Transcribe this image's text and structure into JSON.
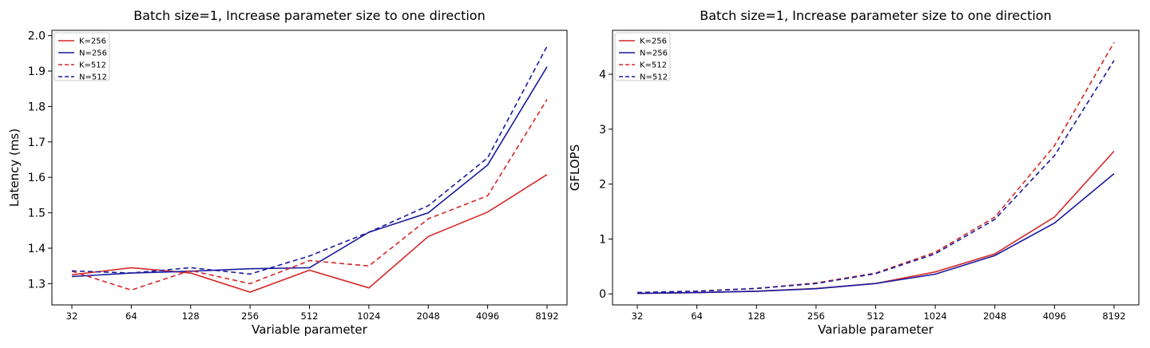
{
  "chart_data": [
    {
      "type": "line",
      "title": "Batch size=1, Increase parameter size to one direction",
      "xlabel": "Variable parameter",
      "ylabel": "Latency (ms)",
      "categories": [
        "32",
        "64",
        "128",
        "256",
        "512",
        "1024",
        "2048",
        "4096",
        "8192"
      ],
      "ylim": [
        1.24,
        2.015
      ],
      "yticks": [
        "1.3",
        "1.4",
        "1.5",
        "1.6",
        "1.7",
        "1.8",
        "1.9",
        "2.0"
      ],
      "grid": false,
      "legend_position": "top-left",
      "series": [
        {
          "name": "K=256",
          "color": "#d62728",
          "dash": "solid",
          "values": [
            1.325,
            1.345,
            1.33,
            1.276,
            1.338,
            1.288,
            1.433,
            1.502,
            1.608
          ]
        },
        {
          "name": "N=256",
          "color": "#1a1a9e",
          "dash": "solid",
          "values": [
            1.32,
            1.33,
            1.335,
            1.342,
            1.345,
            1.445,
            1.5,
            1.635,
            1.912
          ]
        },
        {
          "name": "K=512",
          "color": "#d62728",
          "dash": "dashed",
          "values": [
            1.335,
            1.282,
            1.337,
            1.3,
            1.365,
            1.35,
            1.483,
            1.548,
            1.82
          ]
        },
        {
          "name": "N=512",
          "color": "#1a1a9e",
          "dash": "dashed",
          "values": [
            1.336,
            1.33,
            1.345,
            1.327,
            1.378,
            1.445,
            1.52,
            1.655,
            1.97
          ]
        }
      ]
    },
    {
      "type": "line",
      "title": "Batch size=1, Increase parameter size to one direction",
      "xlabel": "Variable parameter",
      "ylabel": "GFLOPS",
      "categories": [
        "32",
        "64",
        "128",
        "256",
        "512",
        "1024",
        "2048",
        "4096",
        "8192"
      ],
      "ylim": [
        -0.2,
        4.8
      ],
      "yticks": [
        "0",
        "1",
        "2",
        "3",
        "4"
      ],
      "grid": false,
      "legend_position": "top-left",
      "series": [
        {
          "name": "K=256",
          "color": "#d62728",
          "dash": "solid",
          "values": [
            0.01,
            0.024,
            0.05,
            0.1,
            0.19,
            0.4,
            0.73,
            1.4,
            2.6
          ]
        },
        {
          "name": "N=256",
          "color": "#1a1a9e",
          "dash": "solid",
          "values": [
            0.01,
            0.024,
            0.048,
            0.095,
            0.19,
            0.36,
            0.7,
            1.29,
            2.19
          ]
        },
        {
          "name": "K=512",
          "color": "#d62728",
          "dash": "dashed",
          "values": [
            0.025,
            0.05,
            0.1,
            0.2,
            0.38,
            0.76,
            1.4,
            2.7,
            4.58
          ]
        },
        {
          "name": "N=512",
          "color": "#1a1a9e",
          "dash": "dashed",
          "values": [
            0.025,
            0.05,
            0.1,
            0.19,
            0.37,
            0.73,
            1.36,
            2.52,
            4.25
          ]
        }
      ]
    }
  ]
}
